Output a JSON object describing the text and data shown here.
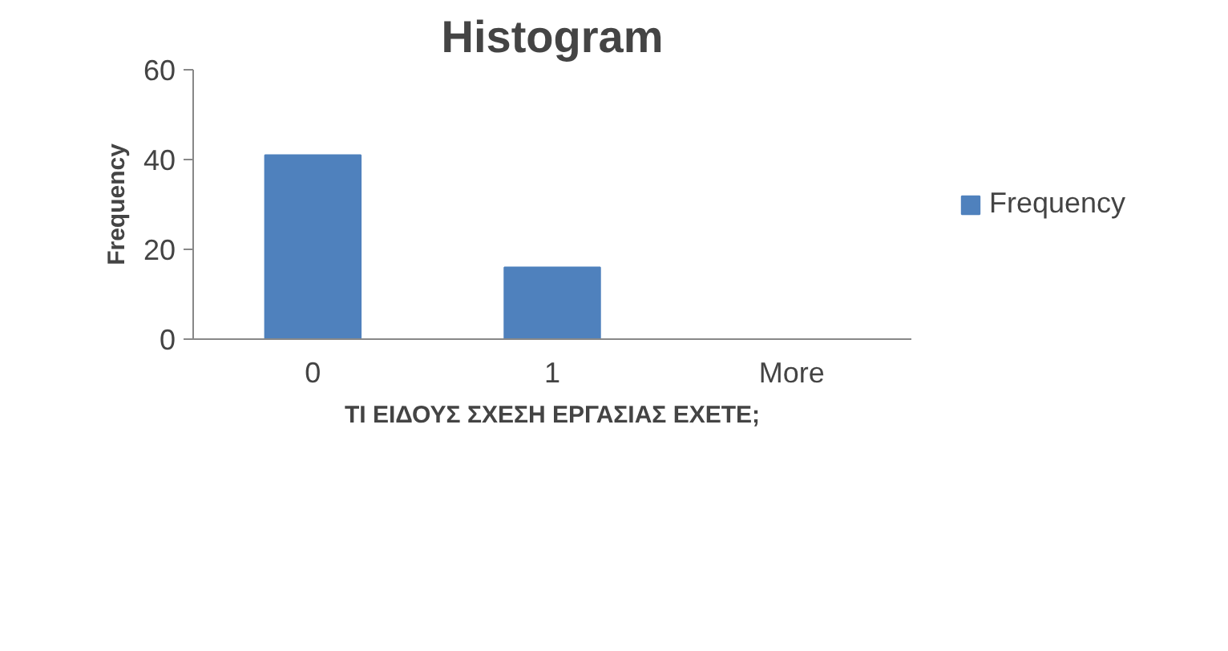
{
  "chart_data": {
    "type": "bar",
    "title": "Histogram",
    "xlabel": "ΤΙ ΕΙΔΟΥΣ ΣΧΕΣΗ ΕΡΓΑΣΙΑΣ ΕΧΕΤΕ;",
    "ylabel": "Frequency",
    "categories": [
      "0",
      "1",
      "More"
    ],
    "series": [
      {
        "name": "Frequency",
        "color": "#4f81bd",
        "values": [
          41,
          16,
          0
        ]
      }
    ],
    "ylim": [
      0,
      60
    ],
    "yticks": [
      0,
      20,
      40,
      60
    ],
    "grid": false,
    "legend": "right"
  }
}
